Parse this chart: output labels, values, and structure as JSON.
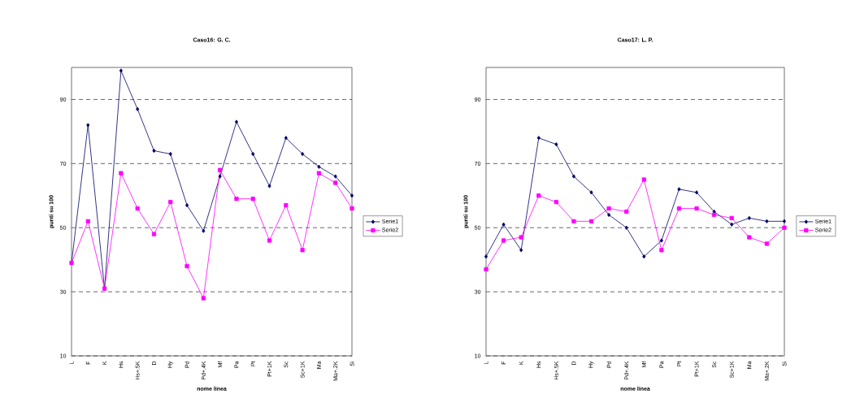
{
  "chart_data": [
    {
      "type": "line",
      "title": "Caso16: G. C.",
      "xlabel": "nome linea",
      "ylabel": "punti su 100",
      "categories": [
        "L",
        "F",
        "K",
        "Hs",
        "Hs+.5K",
        "D",
        "Hy",
        "Pd",
        "Pd+.4K",
        "Mf",
        "Pa",
        "Pt",
        "Pt+1K",
        "Sc",
        "Sc+1K",
        "Ma",
        "Ma+.2K",
        "Si"
      ],
      "series": [
        {
          "name": "Serie1",
          "color": "#000066",
          "marker": "diamond",
          "values": [
            39,
            82,
            31,
            99,
            87,
            74,
            73,
            57,
            49,
            66,
            83,
            73,
            63,
            78,
            73,
            69,
            66,
            60
          ]
        },
        {
          "name": "Serie2",
          "color": "#ff00ff",
          "marker": "square",
          "values": [
            39,
            52,
            31,
            67,
            56,
            48,
            58,
            38,
            28,
            68,
            59,
            59,
            46,
            57,
            43,
            67,
            64,
            56
          ]
        }
      ],
      "ylim": [
        10,
        100
      ],
      "yticks": [
        10,
        30,
        50,
        70,
        90
      ],
      "grid": "y",
      "legend": "right"
    },
    {
      "type": "line",
      "title": "Caso17: L. P.",
      "xlabel": "nome linea",
      "ylabel": "punti su 100",
      "categories": [
        "L",
        "F",
        "K",
        "Hs",
        "Hs+.5K",
        "D",
        "Hy",
        "Pd",
        "Pd+.4K",
        "Mf",
        "Pa",
        "Pt",
        "Pt+1K",
        "Sc",
        "Sc+1K",
        "Ma",
        "Ma+.2K",
        "Si"
      ],
      "series": [
        {
          "name": "Serie1",
          "color": "#000066",
          "marker": "diamond",
          "values": [
            41,
            51,
            43,
            78,
            76,
            66,
            61,
            54,
            50,
            41,
            46,
            62,
            61,
            55,
            51,
            53,
            52,
            52
          ]
        },
        {
          "name": "Serie2",
          "color": "#ff00ff",
          "marker": "square",
          "values": [
            37,
            46,
            47,
            60,
            58,
            52,
            52,
            56,
            55,
            65,
            43,
            56,
            56,
            54,
            53,
            47,
            45,
            50
          ]
        }
      ],
      "ylim": [
        10,
        100
      ],
      "yticks": [
        10,
        30,
        50,
        70,
        90
      ],
      "grid": "y",
      "legend": "right"
    }
  ]
}
